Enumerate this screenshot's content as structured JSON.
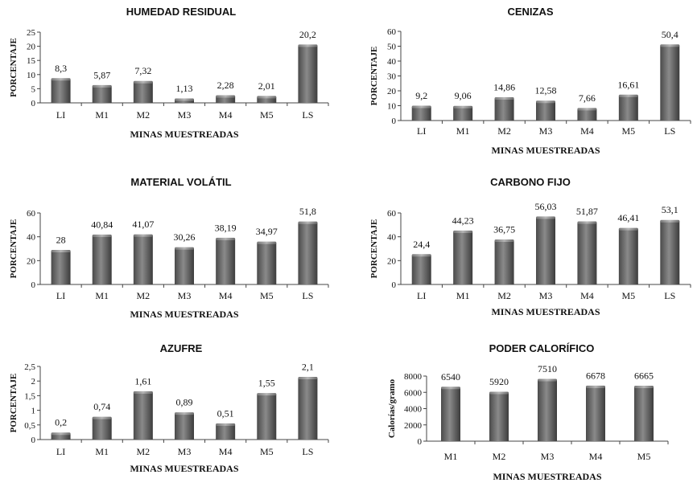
{
  "chart_data": [
    {
      "type": "bar",
      "title": "HUMEDAD RESIDUAL",
      "xlabel": "MINAS MUESTREADAS",
      "ylabel": "PORCENTAJE",
      "categories": [
        "LI",
        "M1",
        "M2",
        "M3",
        "M4",
        "M5",
        "LS"
      ],
      "values": [
        8.3,
        5.87,
        7.32,
        1.13,
        2.28,
        2.01,
        20.2
      ],
      "labels": [
        "8,3",
        "5,87",
        "7,32",
        "1,13",
        "2,28",
        "2,01",
        "20,2"
      ],
      "ylim": [
        0,
        25
      ],
      "yticks": [
        0,
        5,
        10,
        15,
        20,
        25
      ],
      "ytick_labels": [
        "0",
        "5",
        "10",
        "15",
        "20",
        "25"
      ]
    },
    {
      "type": "bar",
      "title": "CENIZAS",
      "xlabel": "MINAS MUESTREADAS",
      "ylabel": "PORCENTAJE",
      "categories": [
        "LI",
        "M1",
        "M2",
        "M3",
        "M4",
        "M5",
        "LS"
      ],
      "values": [
        9.2,
        9.06,
        14.86,
        12.58,
        7.66,
        16.61,
        50.4
      ],
      "labels": [
        "9,2",
        "9,06",
        "14,86",
        "12,58",
        "7,66",
        "16,61",
        "50,4"
      ],
      "ylim": [
        0,
        60
      ],
      "yticks": [
        0,
        10,
        20,
        30,
        40,
        50,
        60
      ],
      "ytick_labels": [
        "0",
        "10",
        "20",
        "30",
        "40",
        "50",
        "60"
      ]
    },
    {
      "type": "bar",
      "title": "MATERIAL VOLÁTIL",
      "xlabel": "MINAS MUESTREADAS",
      "ylabel": "PORCENTAJE",
      "categories": [
        "LI",
        "M1",
        "M2",
        "M3",
        "M4",
        "M5",
        "LS"
      ],
      "values": [
        28,
        40.84,
        41.07,
        30.26,
        38.19,
        34.97,
        51.8
      ],
      "labels": [
        "28",
        "40,84",
        "41,07",
        "30,26",
        "38,19",
        "34,97",
        "51,8"
      ],
      "ylim": [
        0,
        60
      ],
      "yticks": [
        0,
        20,
        40,
        60
      ],
      "ytick_labels": [
        "0",
        "20",
        "40",
        "60"
      ]
    },
    {
      "type": "bar",
      "title": "CARBONO FIJO",
      "xlabel": "MINAS MUESTREADAS",
      "ylabel": "PORCENTAJE",
      "categories": [
        "LI",
        "M1",
        "M2",
        "M3",
        "M4",
        "M5",
        "LS"
      ],
      "values": [
        24.4,
        44.23,
        36.75,
        56.03,
        51.87,
        46.41,
        53.1
      ],
      "labels": [
        "24,4",
        "44,23",
        "36,75",
        "56,03",
        "51,87",
        "46,41",
        "53,1"
      ],
      "ylim": [
        0,
        60
      ],
      "yticks": [
        0,
        20,
        40,
        60
      ],
      "ytick_labels": [
        "0",
        "20",
        "40",
        "60"
      ]
    },
    {
      "type": "bar",
      "title": "AZUFRE",
      "xlabel": "MINAS MUESTREADAS",
      "ylabel": "PORCENTAJE",
      "categories": [
        "LI",
        "M1",
        "M2",
        "M3",
        "M4",
        "M5",
        "LS"
      ],
      "values": [
        0.2,
        0.74,
        1.61,
        0.89,
        0.51,
        1.55,
        2.1
      ],
      "labels": [
        "0,2",
        "0,74",
        "1,61",
        "0,89",
        "0,51",
        "1,55",
        "2,1"
      ],
      "ylim": [
        0,
        2.5
      ],
      "yticks": [
        0,
        0.5,
        1,
        1.5,
        2,
        2.5
      ],
      "ytick_labels": [
        "0",
        "0,5",
        "1",
        "1,5",
        "2",
        "2,5"
      ]
    },
    {
      "type": "bar",
      "title": "PODER CALORÍFICO",
      "xlabel": "MINAS MUESTREADAS",
      "ylabel": "Calorías/gramo",
      "categories": [
        "M1",
        "M2",
        "M3",
        "M4",
        "M5"
      ],
      "values": [
        6540,
        5920,
        7510,
        6678,
        6665
      ],
      "labels": [
        "6540",
        "5920",
        "7510",
        "6678",
        "6665"
      ],
      "ylim": [
        0,
        8000
      ],
      "yticks": [
        0,
        2000,
        4000,
        6000,
        8000
      ],
      "ytick_labels": [
        "0",
        "2000",
        "4000",
        "6000",
        "8000"
      ]
    }
  ]
}
